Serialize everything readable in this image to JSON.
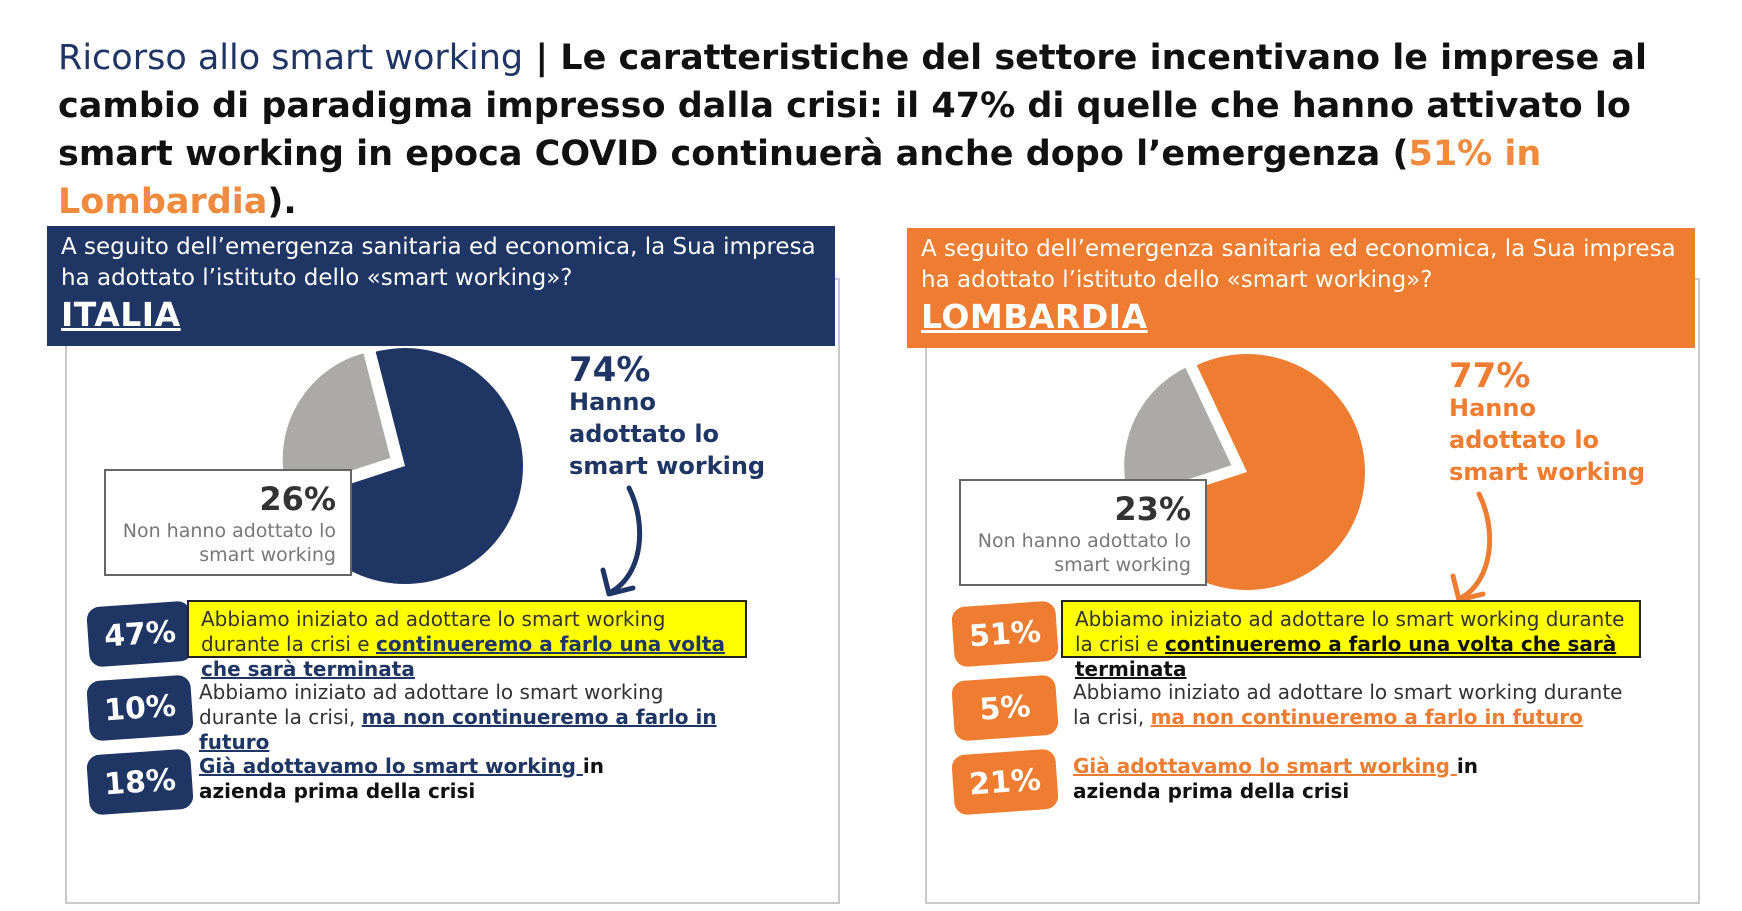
{
  "title": {
    "lead": "Ricorso allo smart working",
    "sep": " | ",
    "main_before": "Le caratteristiche del settore incentivano le imprese al cambio di paradigma impresso dalla crisi: il 47% di quelle che hanno attivato lo smart working in epoca COVID continuerà anche dopo l’emergenza (",
    "highlight": "51% in Lombardia",
    "main_after": ")."
  },
  "colors": {
    "navy": "#1f3564",
    "orange": "#ee7d31",
    "gray": "#acaaa9",
    "yellow": "#ffff00"
  },
  "panels": [
    {
      "question": "A seguito dell’emergenza sanitaria ed economica, la Sua impresa ha adottato l’istituto dello «smart working»?",
      "region": "ITALIA",
      "adopted_pct": "74%",
      "adopted_label": "Hanno adottato lo smart working",
      "not_pct": "26%",
      "not_label": "Non hanno adottato lo smart working",
      "answers": [
        {
          "pct": "47%",
          "text": "Abbiamo iniziato ad adottare lo smart working durante la crisi e ",
          "em": "continueremo a farlo una volta che sarà terminata",
          "tail": ""
        },
        {
          "pct": "10%",
          "text": "Abbiamo iniziato ad adottare lo smart working durante la crisi, ",
          "em": "ma non continueremo a farlo in futuro",
          "tail": ""
        },
        {
          "pct": "18%",
          "text": "",
          "em": "Già adottavamo lo smart working ",
          "tail": "in azienda prima della crisi"
        }
      ]
    },
    {
      "question": "A seguito dell’emergenza sanitaria ed economica, la Sua impresa ha adottato l’istituto dello «smart working»?",
      "region": "LOMBARDIA",
      "adopted_pct": "77%",
      "adopted_label": "Hanno adottato lo smart working",
      "not_pct": "23%",
      "not_label": "Non hanno adottato lo smart working",
      "answers": [
        {
          "pct": "51%",
          "text": "Abbiamo iniziato ad adottare lo smart working durante la crisi e ",
          "em": "continueremo a farlo una volta che sarà terminata",
          "tail": ""
        },
        {
          "pct": "5%",
          "text": "Abbiamo iniziato ad adottare lo smart working durante la crisi, ",
          "em": "ma non continueremo a farlo in futuro",
          "tail": ""
        },
        {
          "pct": "21%",
          "text": "",
          "em": "Già adottavamo lo smart working ",
          "tail": "in azienda prima della crisi"
        }
      ]
    }
  ],
  "chart_data": [
    {
      "type": "pie",
      "title": "ITALIA",
      "categories": [
        "Hanno adottato lo smart working",
        "Non hanno adottato lo smart working"
      ],
      "values": [
        74,
        26
      ]
    },
    {
      "type": "pie",
      "title": "LOMBARDIA",
      "categories": [
        "Hanno adottato lo smart working",
        "Non hanno adottato lo smart working"
      ],
      "values": [
        77,
        23
      ]
    }
  ]
}
